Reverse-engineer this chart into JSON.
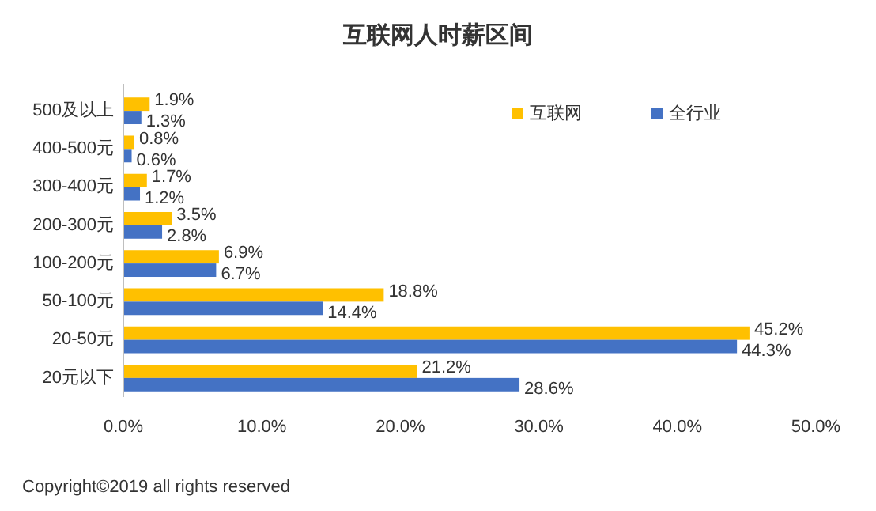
{
  "chart_data": {
    "type": "bar",
    "orientation": "horizontal",
    "title": "互联网人时薪区间",
    "categories": [
      "500及以上",
      "400-500元",
      "300-400元",
      "200-300元",
      "100-200元",
      "50-100元",
      "20-50元",
      "20元以下"
    ],
    "series": [
      {
        "name": "互联网",
        "color": "#ffc000",
        "values": [
          1.9,
          0.8,
          1.7,
          3.5,
          6.9,
          18.8,
          45.2,
          21.2
        ],
        "value_labels": [
          "1.9%",
          "0.8%",
          "1.7%",
          "3.5%",
          "6.9%",
          "18.8%",
          "45.2%",
          "21.2%"
        ]
      },
      {
        "name": "全行业",
        "color": "#4472c4",
        "values": [
          1.3,
          0.6,
          1.2,
          2.8,
          6.7,
          14.4,
          44.3,
          28.6
        ],
        "value_labels": [
          "1.3%",
          "0.6%",
          "1.2%",
          "2.8%",
          "6.7%",
          "14.4%",
          "44.3%",
          "28.6%"
        ]
      }
    ],
    "xlim": [
      0,
      50
    ],
    "xticks": [
      {
        "value": 0,
        "label": "0.0%"
      },
      {
        "value": 10,
        "label": "10.0%"
      },
      {
        "value": 20,
        "label": "20.0%"
      },
      {
        "value": 30,
        "label": "30.0%"
      },
      {
        "value": 40,
        "label": "40.0%"
      },
      {
        "value": 50,
        "label": "50.0%"
      }
    ],
    "legend": "top right",
    "annotations": [
      "Copyright©2019 all rights reserved"
    ]
  }
}
